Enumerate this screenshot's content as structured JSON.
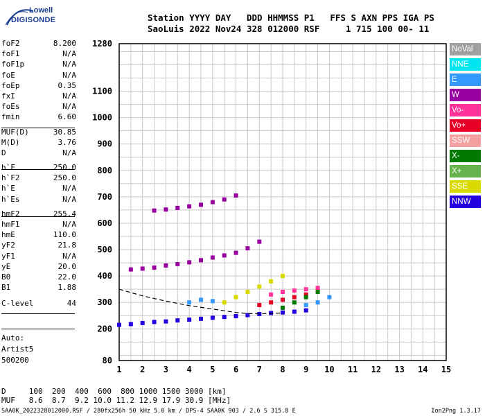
{
  "logo": {
    "line1": "Lowell",
    "line2": "DIGISONDE"
  },
  "header": {
    "line1": "Station YYYY DAY   DDD HHMMSS P1   FFS S AXN PPS IGA PS",
    "line2": "SaoLuis 2022 Nov24 328 012000 RSF     1 715 100 00- 11"
  },
  "params": [
    {
      "k": "foF2",
      "v": "8.200"
    },
    {
      "k": "foF1",
      "v": "N/A"
    },
    {
      "k": "foF1p",
      "v": "N/A"
    },
    {
      "k": "foE",
      "v": "N/A"
    },
    {
      "k": "foEp",
      "v": "0.35"
    },
    {
      "k": "fxI",
      "v": "N/A"
    },
    {
      "k": "foEs",
      "v": "N/A"
    },
    {
      "k": "fmin",
      "v": "6.60"
    },
    {
      "k": "MUF(D)",
      "v": "30.85"
    },
    {
      "k": "M(D)",
      "v": "3.76"
    },
    {
      "k": "D",
      "v": "N/A"
    },
    {
      "k": "h`F",
      "v": "250.0"
    },
    {
      "k": "h`F2",
      "v": "250.0"
    },
    {
      "k": "h`E",
      "v": "N/A"
    },
    {
      "k": "h`Es",
      "v": "N/A"
    },
    {
      "k": "hmF2",
      "v": "255.4"
    },
    {
      "k": "hmF1",
      "v": "N/A"
    },
    {
      "k": "hmE",
      "v": "110.0"
    },
    {
      "k": "yF2",
      "v": "21.8"
    },
    {
      "k": "yF1",
      "v": "N/A"
    },
    {
      "k": "yE",
      "v": "20.0"
    },
    {
      "k": "B0",
      "v": "22.0"
    },
    {
      "k": "B1",
      "v": "1.88"
    },
    {
      "k": "C-level",
      "v": "44"
    }
  ],
  "auto": {
    "line1": "Auto:",
    "line2": "Artist5",
    "line3": "500200"
  },
  "legend": [
    {
      "label": "NoVal",
      "color": "#a0a0a0"
    },
    {
      "label": "NNE",
      "color": "#00e6f0"
    },
    {
      "label": "E",
      "color": "#3399ff"
    },
    {
      "label": "W",
      "color": "#9900a0"
    },
    {
      "label": "Vo-",
      "color": "#ff3399"
    },
    {
      "label": "Vo+",
      "color": "#e60026"
    },
    {
      "label": "SSW",
      "color": "#f4a0a0"
    },
    {
      "label": "X-",
      "color": "#007a00"
    },
    {
      "label": "X+",
      "color": "#66b34d"
    },
    {
      "label": "SSE",
      "color": "#d9d900"
    },
    {
      "label": "NNW",
      "color": "#2200e0"
    }
  ],
  "muf_table": {
    "line1": "D     100  200  400  600  800 1000 1500 3000 [km]",
    "line2": "MUF   8.6  8.7  9.2 10.0 11.2 12.9 17.9 30.9 [MHz]"
  },
  "footer": {
    "left": "SAA0K_2022328012000.RSF / 280fx256h 50 kHz 5.0 km / DPS-4 SAA0K 903 / 2.6 S 315.8 E",
    "right": "Ion2Png 1.3.17"
  },
  "chart_data": {
    "type": "scatter",
    "title": "",
    "xlabel": "",
    "ylabel": "",
    "xlim": [
      1,
      15
    ],
    "ylim": [
      80,
      1280
    ],
    "x_ticks": [
      1,
      2,
      3,
      4,
      5,
      6,
      7,
      8,
      9,
      10,
      11,
      12,
      13,
      14,
      15
    ],
    "y_ticks": [
      80,
      200,
      300,
      400,
      500,
      600,
      700,
      800,
      900,
      1000,
      1100,
      1280
    ],
    "grid": true,
    "profile_curve": {
      "x": [
        1.0,
        2.0,
        3.0,
        4.0,
        5.0,
        6.0,
        6.5,
        7.0,
        7.5,
        8.0
      ],
      "y": [
        350,
        325,
        305,
        288,
        275,
        262,
        258,
        257,
        258,
        260
      ]
    },
    "series": [
      {
        "color": "#2200e0",
        "x": [
          1.0,
          1.5,
          2.0,
          2.5,
          3.0,
          3.5,
          4.0,
          4.5,
          5.0,
          5.5,
          6.0,
          6.5,
          7.0,
          7.5,
          8.0,
          8.5,
          9.0
        ],
        "y": [
          215,
          218,
          222,
          226,
          228,
          232,
          235,
          238,
          242,
          245,
          248,
          252,
          256,
          260,
          262,
          265,
          270
        ]
      },
      {
        "color": "#9900a0",
        "x": [
          1.5,
          2.0,
          2.5,
          3.0,
          3.5,
          4.0,
          4.5,
          5.0,
          5.5,
          6.0,
          6.5,
          7.0
        ],
        "y": [
          425,
          428,
          432,
          440,
          445,
          452,
          460,
          470,
          478,
          488,
          505,
          530
        ]
      },
      {
        "color": "#9900a0",
        "x": [
          2.5,
          3.0,
          3.5,
          4.0,
          4.5,
          5.0,
          5.5,
          6.0
        ],
        "y": [
          648,
          652,
          658,
          664,
          670,
          680,
          690,
          705
        ]
      },
      {
        "color": "#ff3399",
        "x": [
          7.5,
          8.0,
          8.5,
          9.0,
          9.5
        ],
        "y": [
          330,
          340,
          345,
          350,
          355
        ]
      },
      {
        "color": "#e60026",
        "x": [
          7.0,
          7.5,
          8.0,
          8.5,
          9.0
        ],
        "y": [
          290,
          300,
          310,
          320,
          330
        ]
      },
      {
        "color": "#3399ff",
        "x": [
          4.0,
          4.5,
          5.0,
          9.0,
          9.5,
          10.0
        ],
        "y": [
          300,
          310,
          305,
          290,
          300,
          320
        ]
      },
      {
        "color": "#d9d900",
        "x": [
          5.5,
          6.0,
          6.5,
          7.0,
          7.5,
          8.0
        ],
        "y": [
          300,
          320,
          340,
          360,
          380,
          400
        ]
      },
      {
        "color": "#007a00",
        "x": [
          8.0,
          8.5,
          9.0,
          9.5
        ],
        "y": [
          280,
          300,
          320,
          340
        ]
      }
    ]
  }
}
